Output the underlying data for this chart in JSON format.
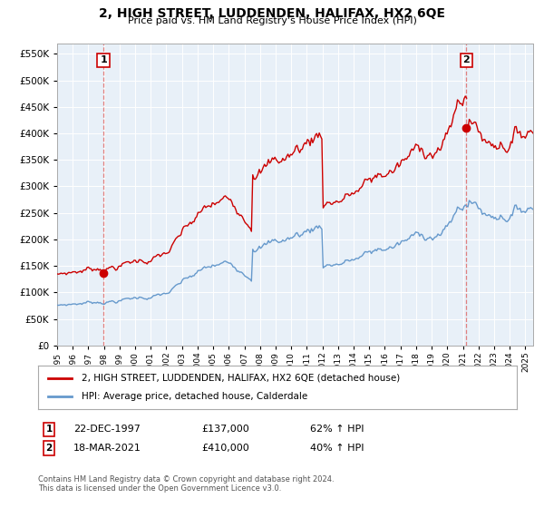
{
  "title": "2, HIGH STREET, LUDDENDEN, HALIFAX, HX2 6QE",
  "subtitle": "Price paid vs. HM Land Registry's House Price Index (HPI)",
  "legend_line1": "2, HIGH STREET, LUDDENDEN, HALIFAX, HX2 6QE (detached house)",
  "legend_line2": "HPI: Average price, detached house, Calderdale",
  "annotation1_date": "22-DEC-1997",
  "annotation1_price": "£137,000",
  "annotation1_hpi": "62% ↑ HPI",
  "annotation2_date": "18-MAR-2021",
  "annotation2_price": "£410,000",
  "annotation2_hpi": "40% ↑ HPI",
  "footnote": "Contains HM Land Registry data © Crown copyright and database right 2024.\nThis data is licensed under the Open Government Licence v3.0.",
  "sale1_year": 1997.97,
  "sale1_price": 137000,
  "sale2_year": 2021.21,
  "sale2_price": 410000,
  "hpi_color": "#6699cc",
  "price_color": "#cc0000",
  "vline_color": "#e08080",
  "marker_color": "#cc0000",
  "ylim": [
    0,
    570000
  ],
  "yticks": [
    0,
    50000,
    100000,
    150000,
    200000,
    250000,
    300000,
    350000,
    400000,
    450000,
    500000,
    550000
  ],
  "xlim_start": 1995.0,
  "xlim_end": 2025.5,
  "plot_bg_color": "#e8f0f8",
  "background_color": "#ffffff",
  "grid_color": "#ffffff"
}
